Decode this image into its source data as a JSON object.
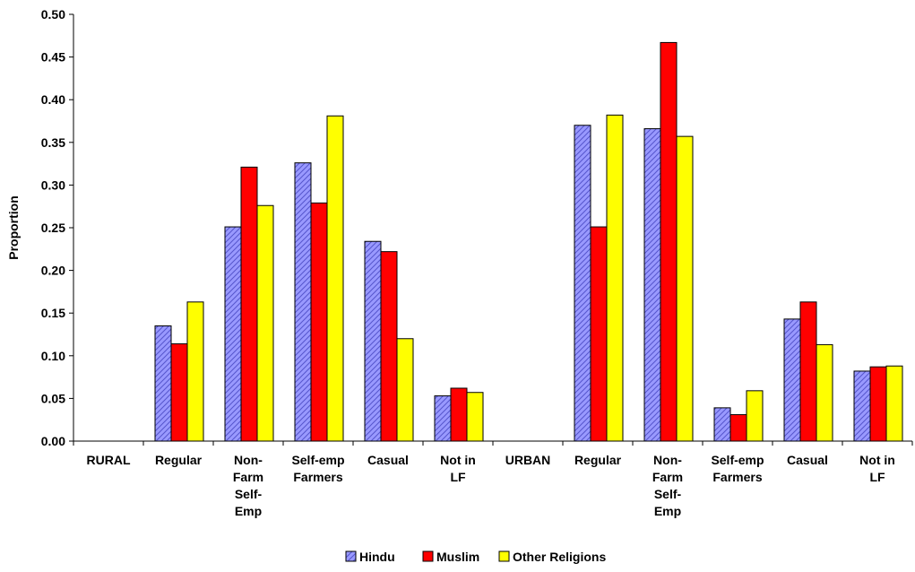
{
  "chart_data": {
    "type": "bar",
    "ylabel": "Proportion",
    "ylim": [
      0,
      0.5
    ],
    "ytick_step": 0.05,
    "ytick_labels": [
      "0.00",
      "0.05",
      "0.10",
      "0.15",
      "0.20",
      "0.25",
      "0.30",
      "0.35",
      "0.40",
      "0.45",
      "0.50"
    ],
    "categories": [
      [
        "RURAL"
      ],
      [
        "Regular"
      ],
      [
        "Non-",
        "Farm",
        "Self-",
        "Emp"
      ],
      [
        "Self-emp",
        "Farmers"
      ],
      [
        "Casual"
      ],
      [
        "Not in",
        "LF"
      ],
      [
        "URBAN"
      ],
      [
        "Regular"
      ],
      [
        "Non-",
        "Farm",
        "Self-",
        "Emp"
      ],
      [
        "Self-emp",
        "Farmers"
      ],
      [
        "Casual"
      ],
      [
        "Not in",
        "LF"
      ]
    ],
    "series": [
      {
        "name": "Hindu",
        "color": "#9999FF",
        "pattern": "hatch",
        "values": [
          null,
          0.135,
          0.251,
          0.326,
          0.234,
          0.053,
          null,
          0.37,
          0.366,
          0.039,
          0.143,
          0.082
        ]
      },
      {
        "name": "Muslim",
        "color": "#FF0000",
        "pattern": "solid",
        "values": [
          null,
          0.114,
          0.321,
          0.279,
          0.222,
          0.062,
          null,
          0.251,
          0.467,
          0.031,
          0.163,
          0.087
        ]
      },
      {
        "name": "Other Religions",
        "color": "#FFFF00",
        "pattern": "solid",
        "values": [
          null,
          0.163,
          0.276,
          0.381,
          0.12,
          0.057,
          null,
          0.382,
          0.357,
          0.059,
          0.113,
          0.088
        ]
      }
    ],
    "legend_position": "bottom-center",
    "grid": false
  }
}
